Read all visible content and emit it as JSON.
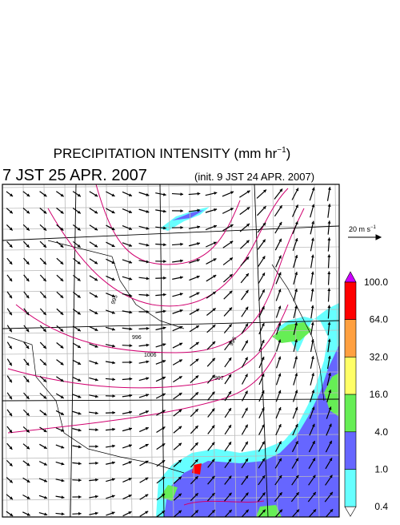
{
  "header": {
    "title": "PRECIPITATION INTENSITY (mm hr",
    "title_exponent": "−1",
    "title_close": ")",
    "valid_time": "7 JST 25 APR. 2007",
    "init_time": "(init. 9 JST 24 APR. 2007)"
  },
  "vector_reference": {
    "label": "20 m s",
    "exponent": "−1"
  },
  "map": {
    "contour_labels": [
      "995",
      "996",
      "1006",
      "996",
      "997"
    ]
  },
  "colorbar": {
    "labels": [
      "100.0",
      "64.0",
      "32.0",
      "16.0",
      "4.0",
      "1.0",
      "0.4"
    ],
    "colors": [
      "#cc00ff",
      "#ff0000",
      "#ffa040",
      "#ffff66",
      "#66ee55",
      "#6666ff",
      "#66ffff",
      "#ffffff"
    ]
  }
}
